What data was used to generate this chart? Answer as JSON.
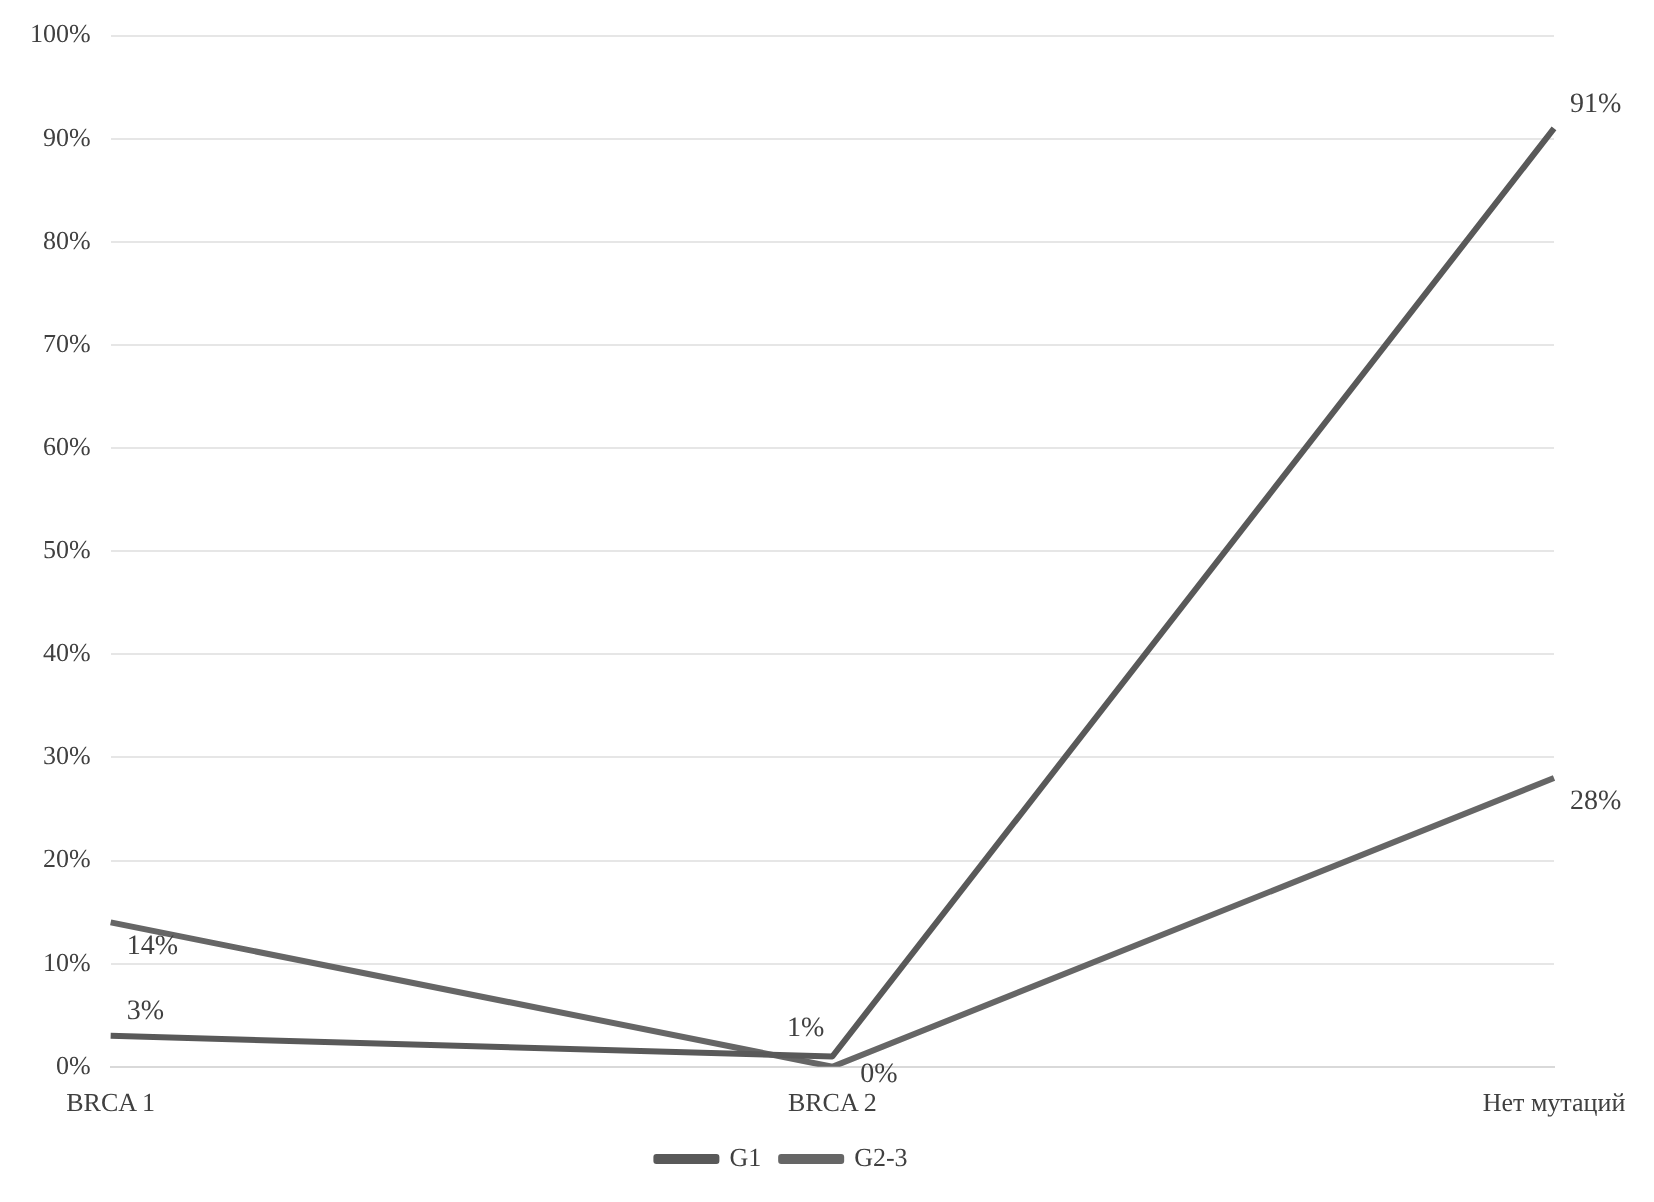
{
  "chart_data": {
    "type": "line",
    "categories": [
      "BRCA 1",
      "BRCA 2",
      "Нет мутаций"
    ],
    "series": [
      {
        "name": "G1",
        "color": "#595959",
        "values": [
          3,
          1,
          91
        ],
        "value_labels": [
          "3%",
          "1%",
          "91%"
        ]
      },
      {
        "name": "G2-3",
        "color": "#666666",
        "values": [
          14,
          0,
          28
        ],
        "value_labels": [
          "14%",
          "0%",
          "28%"
        ]
      }
    ],
    "ylim": [
      0,
      100
    ],
    "yticks": [
      {
        "value": 0,
        "label": "0%"
      },
      {
        "value": 10,
        "label": "10%"
      },
      {
        "value": 20,
        "label": "20%"
      },
      {
        "value": 30,
        "label": "30%"
      },
      {
        "value": 40,
        "label": "40%"
      },
      {
        "value": 50,
        "label": "50%"
      },
      {
        "value": 60,
        "label": "60%"
      },
      {
        "value": 70,
        "label": "70%"
      },
      {
        "value": 80,
        "label": "80%"
      },
      {
        "value": 90,
        "label": "90%"
      },
      {
        "value": 100,
        "label": "100%"
      }
    ],
    "grid": "y",
    "legend": "bottom",
    "marker": "none",
    "line_style": "solid"
  }
}
